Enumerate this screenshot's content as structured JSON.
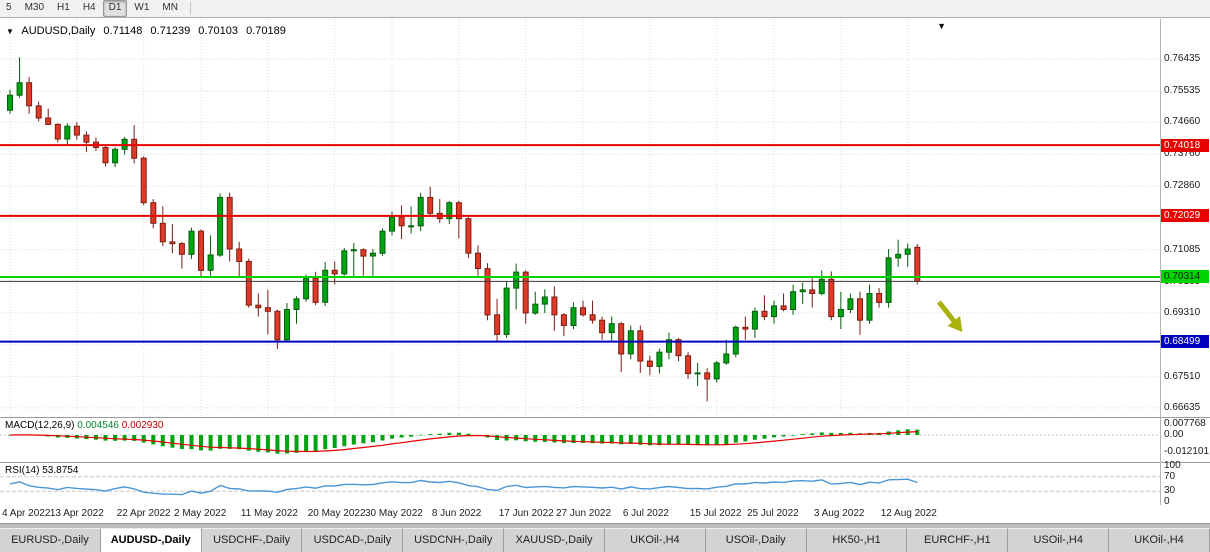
{
  "toolbar": {
    "periods": [
      {
        "label": "5",
        "active": false
      },
      {
        "label": "M30",
        "active": false
      },
      {
        "label": "H1",
        "active": false
      },
      {
        "label": "H4",
        "active": false
      },
      {
        "label": "D1",
        "active": true
      },
      {
        "label": "W1",
        "active": false
      },
      {
        "label": "MN",
        "active": false
      }
    ]
  },
  "chart": {
    "symbol_label": "AUDUSD,Daily",
    "ohlc": {
      "open": "0.71148",
      "high": "0.71239",
      "low": "0.70103",
      "close": "0.70189"
    }
  },
  "macd": {
    "name": "MACD(12,26,9)",
    "main": "0.004546",
    "signal": "0.002930",
    "axis_labels": [
      "0.007768",
      "0.00",
      "-0.012101"
    ]
  },
  "rsi": {
    "name": "RSI(14)",
    "value": "53.8754",
    "axis_labels": [
      "100",
      "70",
      "30",
      "0"
    ],
    "levels": [
      70,
      30
    ]
  },
  "chart_data": {
    "type": "candlestick",
    "symbol": "AUDUSD",
    "timeframe": "Daily",
    "y_domain": [
      0.6638,
      0.7756
    ],
    "y_grid": [
      "0.76435",
      "0.75535",
      "0.74660",
      "0.73760",
      "0.72860",
      "0.71960",
      "0.71085",
      "0.70185",
      "0.69310",
      "0.68410",
      "0.67510",
      "0.66635"
    ],
    "x_ticks": [
      {
        "i": 0,
        "label": "4 Apr 2022"
      },
      {
        "i": 7,
        "label": "13 Apr 2022"
      },
      {
        "i": 14,
        "label": "22 Apr 2022"
      },
      {
        "i": 20,
        "label": "2 May 2022"
      },
      {
        "i": 27,
        "label": "11 May 2022"
      },
      {
        "i": 34,
        "label": "20 May 2022"
      },
      {
        "i": 40,
        "label": "30 May 2022"
      },
      {
        "i": 47,
        "label": "8 Jun 2022"
      },
      {
        "i": 54,
        "label": "17 Jun 2022"
      },
      {
        "i": 60,
        "label": "27 Jun 2022"
      },
      {
        "i": 67,
        "label": "6 Jul 2022"
      },
      {
        "i": 74,
        "label": "15 Jul 2022"
      },
      {
        "i": 80,
        "label": "25 Jul 2022"
      },
      {
        "i": 87,
        "label": "3 Aug 2022"
      },
      {
        "i": 94,
        "label": "12 Aug 2022"
      }
    ],
    "h_lines": [
      {
        "name": "resistance-upper",
        "price": 0.74018,
        "label": "0.74018",
        "color": "#E60000",
        "text": "#FFFFFF"
      },
      {
        "name": "resistance-lower",
        "price": 0.72029,
        "label": "0.72029",
        "color": "#E60000",
        "text": "#FFFFFF"
      },
      {
        "name": "support-green",
        "price": 0.70314,
        "label": "0.70314",
        "color": "#00D400",
        "text": "#002000"
      },
      {
        "name": "support-blue",
        "price": 0.68499,
        "label": "0.68499",
        "color": "#0000C0",
        "text": "#FFFFFF"
      }
    ],
    "current_price": 0.70189,
    "annotation_arrow": {
      "x": 939,
      "y": 283,
      "rotation": -38,
      "color": "#A9B10A"
    },
    "colors": {
      "up": "#00A312",
      "up_stroke": "#045E0C",
      "down": "#DD3B27",
      "down_stroke": "#7E1D12",
      "grid": "#DADADA",
      "macd_hist": "#00A312",
      "macd_signal": "#E60000",
      "rsi_line": "#4A96D8",
      "bid_line": "#3A3A3A"
    },
    "candles": [
      [
        0.75,
        0.7557,
        0.749,
        0.7542
      ],
      [
        0.7542,
        0.7648,
        0.7535,
        0.7577
      ],
      [
        0.7577,
        0.7593,
        0.749,
        0.7512
      ],
      [
        0.7512,
        0.7524,
        0.7468,
        0.7478
      ],
      [
        0.7478,
        0.7504,
        0.7458,
        0.746
      ],
      [
        0.746,
        0.7463,
        0.7409,
        0.7419
      ],
      [
        0.7419,
        0.7463,
        0.74,
        0.7455
      ],
      [
        0.7455,
        0.7466,
        0.7417,
        0.743
      ],
      [
        0.743,
        0.744,
        0.7382,
        0.741
      ],
      [
        0.741,
        0.7423,
        0.7385,
        0.7395
      ],
      [
        0.7395,
        0.7401,
        0.7342,
        0.7352
      ],
      [
        0.7352,
        0.7395,
        0.734,
        0.739
      ],
      [
        0.739,
        0.7425,
        0.7375,
        0.7418
      ],
      [
        0.7418,
        0.7458,
        0.735,
        0.7365
      ],
      [
        0.7365,
        0.737,
        0.7233,
        0.724
      ],
      [
        0.724,
        0.725,
        0.7168,
        0.7182
      ],
      [
        0.7182,
        0.723,
        0.7118,
        0.713
      ],
      [
        0.713,
        0.718,
        0.7098,
        0.7125
      ],
      [
        0.7125,
        0.713,
        0.7055,
        0.7095
      ],
      [
        0.7095,
        0.717,
        0.7082,
        0.716
      ],
      [
        0.716,
        0.7165,
        0.7029,
        0.705
      ],
      [
        0.705,
        0.7148,
        0.7035,
        0.7093
      ],
      [
        0.7093,
        0.7266,
        0.7088,
        0.7255
      ],
      [
        0.7255,
        0.7268,
        0.7075,
        0.711
      ],
      [
        0.711,
        0.713,
        0.7033,
        0.7075
      ],
      [
        0.7075,
        0.7083,
        0.6945,
        0.6952
      ],
      [
        0.6952,
        0.6985,
        0.692,
        0.6945
      ],
      [
        0.6945,
        0.6995,
        0.687,
        0.6935
      ],
      [
        0.6935,
        0.694,
        0.6829,
        0.6855
      ],
      [
        0.6855,
        0.6958,
        0.685,
        0.694
      ],
      [
        0.694,
        0.6977,
        0.69,
        0.697
      ],
      [
        0.697,
        0.7038,
        0.6962,
        0.7028
      ],
      [
        0.7028,
        0.7046,
        0.6952,
        0.696
      ],
      [
        0.696,
        0.7073,
        0.695,
        0.705
      ],
      [
        0.705,
        0.7075,
        0.701,
        0.704
      ],
      [
        0.704,
        0.7113,
        0.7035,
        0.7105
      ],
      [
        0.7105,
        0.7127,
        0.7033,
        0.7108
      ],
      [
        0.7108,
        0.7112,
        0.7035,
        0.709
      ],
      [
        0.709,
        0.711,
        0.7035,
        0.7098
      ],
      [
        0.7098,
        0.7168,
        0.709,
        0.716
      ],
      [
        0.716,
        0.7215,
        0.7148,
        0.72
      ],
      [
        0.72,
        0.7232,
        0.7138,
        0.7175
      ],
      [
        0.7175,
        0.723,
        0.7153,
        0.7175
      ],
      [
        0.7175,
        0.7268,
        0.716,
        0.7255
      ],
      [
        0.7255,
        0.7285,
        0.72,
        0.721
      ],
      [
        0.721,
        0.725,
        0.7183,
        0.7195
      ],
      [
        0.7195,
        0.7245,
        0.718,
        0.724
      ],
      [
        0.724,
        0.7246,
        0.714,
        0.7195
      ],
      [
        0.7195,
        0.72,
        0.7085,
        0.7098
      ],
      [
        0.7098,
        0.712,
        0.7035,
        0.7055
      ],
      [
        0.7055,
        0.707,
        0.691,
        0.6925
      ],
      [
        0.6925,
        0.697,
        0.685,
        0.687
      ],
      [
        0.687,
        0.702,
        0.686,
        0.7
      ],
      [
        0.7,
        0.7069,
        0.694,
        0.7045
      ],
      [
        0.7045,
        0.705,
        0.69,
        0.693
      ],
      [
        0.693,
        0.699,
        0.6925,
        0.6955
      ],
      [
        0.6955,
        0.6997,
        0.693,
        0.6975
      ],
      [
        0.6975,
        0.7005,
        0.688,
        0.6925
      ],
      [
        0.6925,
        0.693,
        0.6865,
        0.6895
      ],
      [
        0.6895,
        0.696,
        0.6885,
        0.6945
      ],
      [
        0.6945,
        0.6965,
        0.692,
        0.6925
      ],
      [
        0.6925,
        0.6965,
        0.69,
        0.691
      ],
      [
        0.691,
        0.692,
        0.6855,
        0.6875
      ],
      [
        0.6875,
        0.692,
        0.685,
        0.69
      ],
      [
        0.69,
        0.6905,
        0.6764,
        0.6815
      ],
      [
        0.6815,
        0.6895,
        0.68,
        0.688
      ],
      [
        0.688,
        0.6895,
        0.6762,
        0.6795
      ],
      [
        0.6795,
        0.681,
        0.6755,
        0.678
      ],
      [
        0.678,
        0.683,
        0.676,
        0.682
      ],
      [
        0.682,
        0.6875,
        0.68,
        0.6855
      ],
      [
        0.6855,
        0.686,
        0.6795,
        0.681
      ],
      [
        0.681,
        0.682,
        0.6745,
        0.676
      ],
      [
        0.676,
        0.679,
        0.6725,
        0.6762
      ],
      [
        0.6762,
        0.6775,
        0.6682,
        0.6745
      ],
      [
        0.6745,
        0.6795,
        0.6735,
        0.679
      ],
      [
        0.679,
        0.6855,
        0.6785,
        0.6815
      ],
      [
        0.6815,
        0.6895,
        0.6805,
        0.689
      ],
      [
        0.689,
        0.692,
        0.6855,
        0.6885
      ],
      [
        0.6885,
        0.6945,
        0.686,
        0.6935
      ],
      [
        0.6935,
        0.698,
        0.691,
        0.692
      ],
      [
        0.692,
        0.6965,
        0.69,
        0.695
      ],
      [
        0.695,
        0.6985,
        0.6935,
        0.694
      ],
      [
        0.694,
        0.701,
        0.6925,
        0.699
      ],
      [
        0.699,
        0.7015,
        0.6955,
        0.6995
      ],
      [
        0.6995,
        0.703,
        0.6945,
        0.6985
      ],
      [
        0.6985,
        0.705,
        0.698,
        0.7025
      ],
      [
        0.7025,
        0.7047,
        0.691,
        0.692
      ],
      [
        0.692,
        0.699,
        0.6885,
        0.694
      ],
      [
        0.694,
        0.6985,
        0.693,
        0.697
      ],
      [
        0.697,
        0.699,
        0.6869,
        0.691
      ],
      [
        0.691,
        0.701,
        0.69,
        0.6985
      ],
      [
        0.6985,
        0.7,
        0.6945,
        0.696
      ],
      [
        0.696,
        0.711,
        0.6945,
        0.7085
      ],
      [
        0.7085,
        0.7136,
        0.706,
        0.7095
      ],
      [
        0.7095,
        0.7125,
        0.706,
        0.711
      ],
      [
        0.71148,
        0.71239,
        0.70103,
        0.70189
      ]
    ]
  },
  "tabs": [
    {
      "label": "EURUSD-,Daily",
      "active": false
    },
    {
      "label": "AUDUSD-,Daily",
      "active": true
    },
    {
      "label": "USDCHF-,Daily",
      "active": false
    },
    {
      "label": "USDCAD-,Daily",
      "active": false
    },
    {
      "label": "USDCNH-,Daily",
      "active": false
    },
    {
      "label": "XAUUSD-,Daily",
      "active": false
    },
    {
      "label": "UKOil-,H4",
      "active": false
    },
    {
      "label": "USOil-,Daily",
      "active": false
    },
    {
      "label": "HK50-,H1",
      "active": false
    },
    {
      "label": "EURCHF-,H1",
      "active": false
    },
    {
      "label": "USOil-,H4",
      "active": false
    },
    {
      "label": "UKOil-,H4",
      "active": false
    }
  ]
}
